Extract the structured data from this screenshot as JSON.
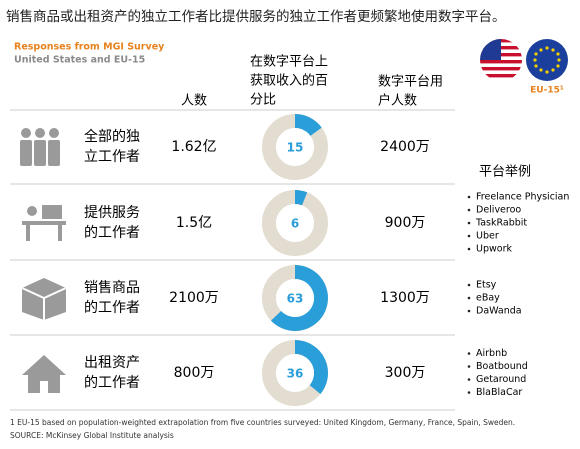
{
  "title": "销售商品或出租资产的独立工作者比提供服务的独立工作者更频繁地使用数字平台。",
  "subtitle": "Responses from MGI Survey",
  "region": "United States and EU-15",
  "eu_label": "EU-15¹",
  "headers": {
    "people": "人数",
    "share": [
      "在数字平台上",
      "获取收入的百",
      "分比"
    ],
    "users": [
      "数字平台用",
      "户人数"
    ],
    "examples": "平台举例"
  },
  "rows": [
    {
      "label": [
        "全部的独",
        "立工作者"
      ],
      "people": "1.62亿",
      "share": 15,
      "users": "2400万",
      "examples": []
    },
    {
      "label": [
        "提供服务",
        "的工作者"
      ],
      "people": "1.5亿",
      "share": 6,
      "users": "900万",
      "examples": [
        "Freelance Physician",
        "Deliveroo",
        "TaskRabbit",
        "Uber",
        "Upwork"
      ]
    },
    {
      "label": [
        "销售商品",
        "的工作者"
      ],
      "people": "2100万",
      "share": 63,
      "users": "1300万",
      "examples": [
        "Etsy",
        "eBay",
        "DaWanda"
      ]
    },
    {
      "label": [
        "出租资产",
        "的工作者"
      ],
      "people": "800万",
      "share": 36,
      "users": "300万",
      "examples": [
        "Airbnb",
        "Boatbound",
        "Getaround",
        "BlaBlaCar"
      ]
    }
  ],
  "footnote": "1 EU-15 based on population-weighted extrapolation from five countries surveyed: United Kingdom, Germany, France, Spain, Sweden.",
  "source": "SOURCE: McKinsey Global Institute analysis"
}
